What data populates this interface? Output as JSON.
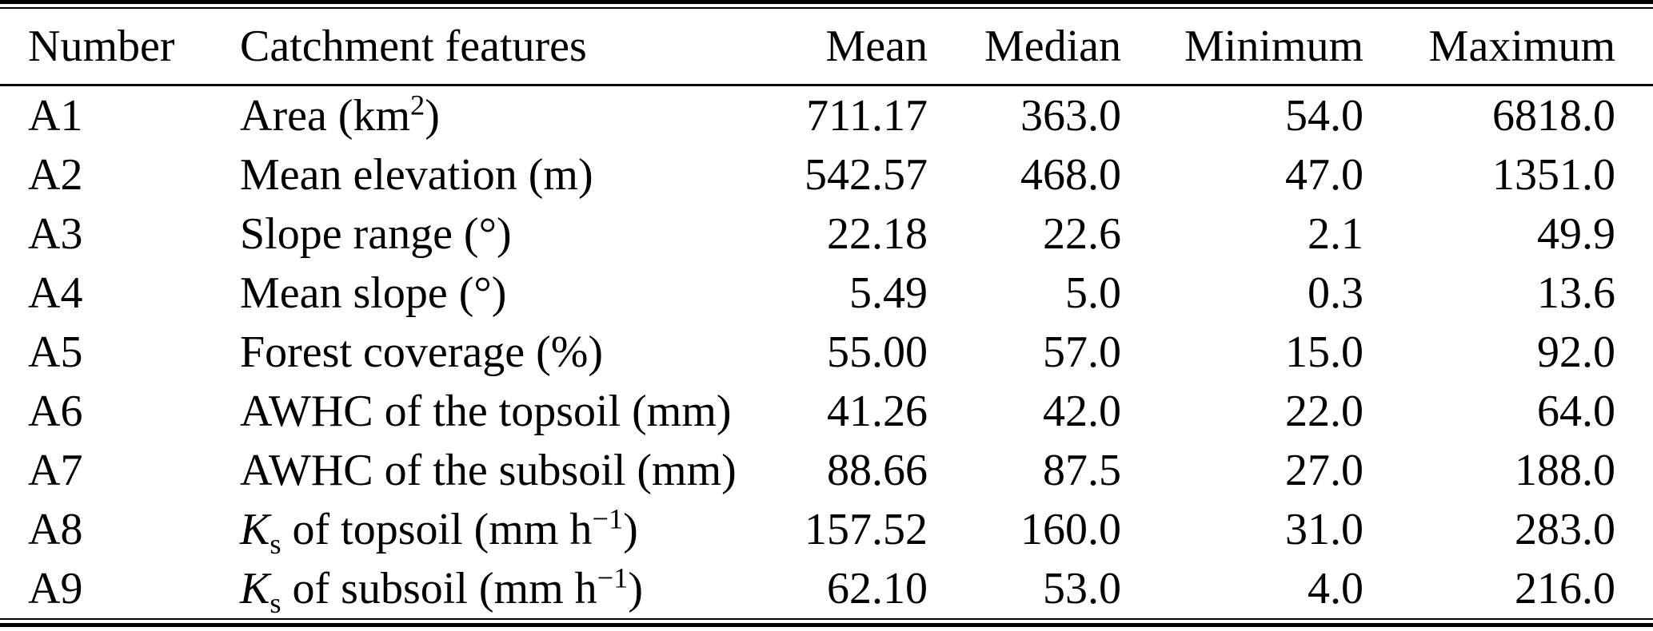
{
  "table": {
    "columns": [
      {
        "label": "Number",
        "align": "left"
      },
      {
        "label": "Catchment features",
        "align": "left"
      },
      {
        "label": "Mean",
        "align": "right"
      },
      {
        "label": "Median",
        "align": "right"
      },
      {
        "label": "Minimum",
        "align": "right"
      },
      {
        "label": "Maximum",
        "align": "right"
      }
    ],
    "rows": [
      {
        "number": "A1",
        "feature_parts": [
          {
            "t": "Area (km",
            "s": "n"
          },
          {
            "t": "2",
            "s": "sup"
          },
          {
            "t": ")",
            "s": "n"
          }
        ],
        "feature_plain": "Area (km2)",
        "mean": "711.17",
        "median": "363.0",
        "minimum": "54.0",
        "maximum": "6818.0"
      },
      {
        "number": "A2",
        "feature_parts": [
          {
            "t": "Mean elevation (m)",
            "s": "n"
          }
        ],
        "feature_plain": "Mean elevation (m)",
        "mean": "542.57",
        "median": "468.0",
        "minimum": "47.0",
        "maximum": "1351.0"
      },
      {
        "number": "A3",
        "feature_parts": [
          {
            "t": "Slope range (°)",
            "s": "n"
          }
        ],
        "feature_plain": "Slope range (°)",
        "mean": "22.18",
        "median": "22.6",
        "minimum": "2.1",
        "maximum": "49.9"
      },
      {
        "number": "A4",
        "feature_parts": [
          {
            "t": "Mean slope (°)",
            "s": "n"
          }
        ],
        "feature_plain": "Mean slope (°)",
        "mean": "5.49",
        "median": "5.0",
        "minimum": "0.3",
        "maximum": "13.6"
      },
      {
        "number": "A5",
        "feature_parts": [
          {
            "t": "Forest coverage (%)",
            "s": "n"
          }
        ],
        "feature_plain": "Forest coverage (%)",
        "mean": "55.00",
        "median": "57.0",
        "minimum": "15.0",
        "maximum": "92.0"
      },
      {
        "number": "A6",
        "feature_parts": [
          {
            "t": "AWHC of the topsoil (mm)",
            "s": "n"
          }
        ],
        "feature_plain": "AWHC of the topsoil (mm)",
        "mean": "41.26",
        "median": "42.0",
        "minimum": "22.0",
        "maximum": "64.0"
      },
      {
        "number": "A7",
        "feature_parts": [
          {
            "t": "AWHC of the subsoil (mm)",
            "s": "n"
          }
        ],
        "feature_plain": "AWHC of the subsoil (mm)",
        "mean": "88.66",
        "median": "87.5",
        "minimum": "27.0",
        "maximum": "188.0"
      },
      {
        "number": "A8",
        "feature_parts": [
          {
            "t": "K",
            "s": "i"
          },
          {
            "t": "s",
            "s": "sub"
          },
          {
            "t": " of topsoil (mm h",
            "s": "n"
          },
          {
            "t": "−1",
            "s": "sup"
          },
          {
            "t": ")",
            "s": "n"
          }
        ],
        "feature_plain": "Ks of topsoil (mm h−1)",
        "mean": "157.52",
        "median": "160.0",
        "minimum": "31.0",
        "maximum": "283.0"
      },
      {
        "number": "A9",
        "feature_parts": [
          {
            "t": "K",
            "s": "i"
          },
          {
            "t": "s",
            "s": "sub"
          },
          {
            "t": " of subsoil (mm h",
            "s": "n"
          },
          {
            "t": "−1",
            "s": "sup"
          },
          {
            "t": ")",
            "s": "n"
          }
        ],
        "feature_plain": "Ks of subsoil (mm h−1)",
        "mean": "62.10",
        "median": "53.0",
        "minimum": "4.0",
        "maximum": "216.0"
      }
    ]
  },
  "colors": {
    "text": "#000000",
    "background": "#ffffff",
    "rule": "#000000"
  }
}
